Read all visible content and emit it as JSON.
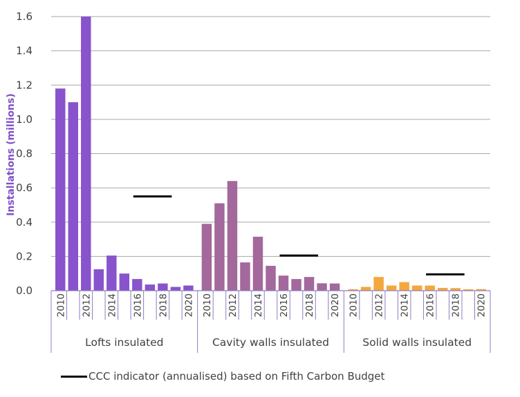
{
  "chart_data": {
    "type": "bar",
    "ylabel": "Installations (millions)",
    "ylim": [
      0,
      1.6
    ],
    "yticks": [
      "0.0",
      "0.2",
      "0.4",
      "0.6",
      "0.8",
      "1.0",
      "1.2",
      "1.4",
      "1.6"
    ],
    "grid": true,
    "x_tick_labels": [
      "2010",
      "2012",
      "2014",
      "2016",
      "2018",
      "2020"
    ],
    "groups": [
      {
        "name": "Lofts insulated",
        "color": "#8853cc",
        "years": [
          2010,
          2011,
          2012,
          2013,
          2014,
          2015,
          2016,
          2017,
          2018,
          2019,
          2020
        ],
        "values": [
          1.18,
          1.1,
          1.6,
          0.125,
          0.205,
          0.1,
          0.068,
          0.036,
          0.042,
          0.022,
          0.03
        ],
        "indicator": 0.55
      },
      {
        "name": "Cavity walls insulated",
        "color": "#a3689c",
        "years": [
          2010,
          2011,
          2012,
          2013,
          2014,
          2015,
          2016,
          2017,
          2018,
          2019,
          2020
        ],
        "values": [
          0.39,
          0.51,
          0.64,
          0.165,
          0.315,
          0.145,
          0.088,
          0.068,
          0.08,
          0.043,
          0.042
        ],
        "indicator": 0.205
      },
      {
        "name": "Solid walls insulated",
        "color": "#f4a73c",
        "years": [
          2010,
          2011,
          2012,
          2013,
          2014,
          2015,
          2016,
          2017,
          2018,
          2019,
          2020
        ],
        "values": [
          0.008,
          0.022,
          0.08,
          0.03,
          0.05,
          0.03,
          0.03,
          0.016,
          0.015,
          0.008,
          0.009
        ],
        "indicator": 0.095
      }
    ],
    "legend": {
      "position": "bottom",
      "label": "CCC indicator (annualised) based on Fifth Carbon Budget",
      "color": "#000000"
    }
  }
}
